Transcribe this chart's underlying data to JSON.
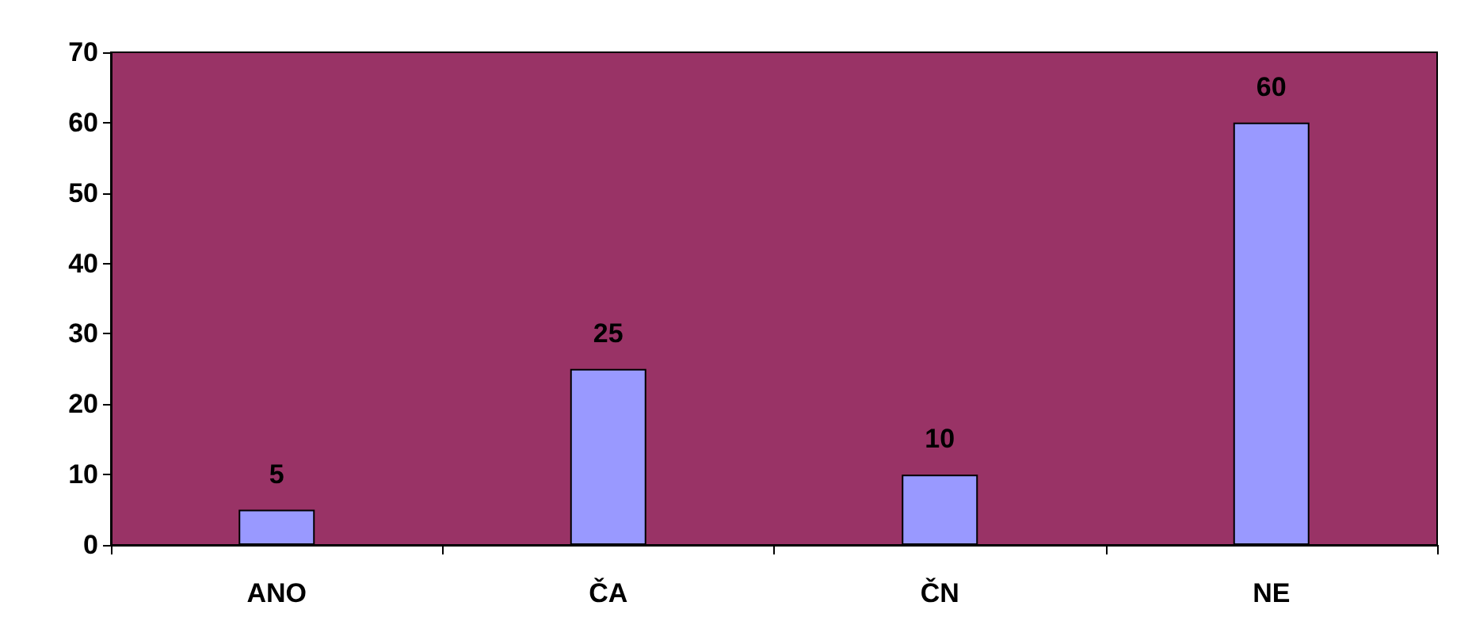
{
  "chart_data": {
    "type": "bar",
    "categories": [
      "ANO",
      "ČA",
      "ČN",
      "NE"
    ],
    "values": [
      5,
      25,
      10,
      60
    ],
    "color": "#9999ff",
    "ylim": [
      0,
      70
    ],
    "yticks": [
      0,
      10,
      20,
      30,
      40,
      50,
      60,
      70
    ],
    "data_labels": true,
    "grid": false
  }
}
